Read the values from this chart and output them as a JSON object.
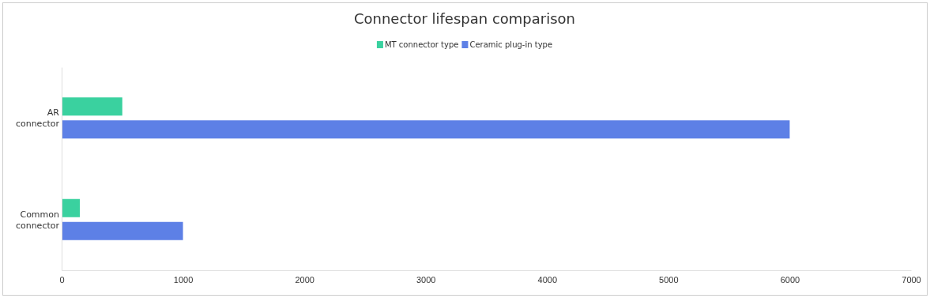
{
  "chart_data": {
    "type": "bar",
    "orientation": "horizontal",
    "title": "Connector lifespan comparison",
    "categories": [
      "AR connector",
      "Common connector"
    ],
    "series": [
      {
        "name": "MT connector type",
        "color": "#3ad19f",
        "values": [
          500,
          150
        ]
      },
      {
        "name": "Ceramic plug-in type",
        "color": "#5d80e6",
        "values": [
          6000,
          1000
        ]
      }
    ],
    "xlim": [
      0,
      7000
    ],
    "xticks": [
      0,
      1000,
      2000,
      3000,
      4000,
      5000,
      6000,
      7000
    ],
    "grid": false,
    "legend": "top"
  }
}
